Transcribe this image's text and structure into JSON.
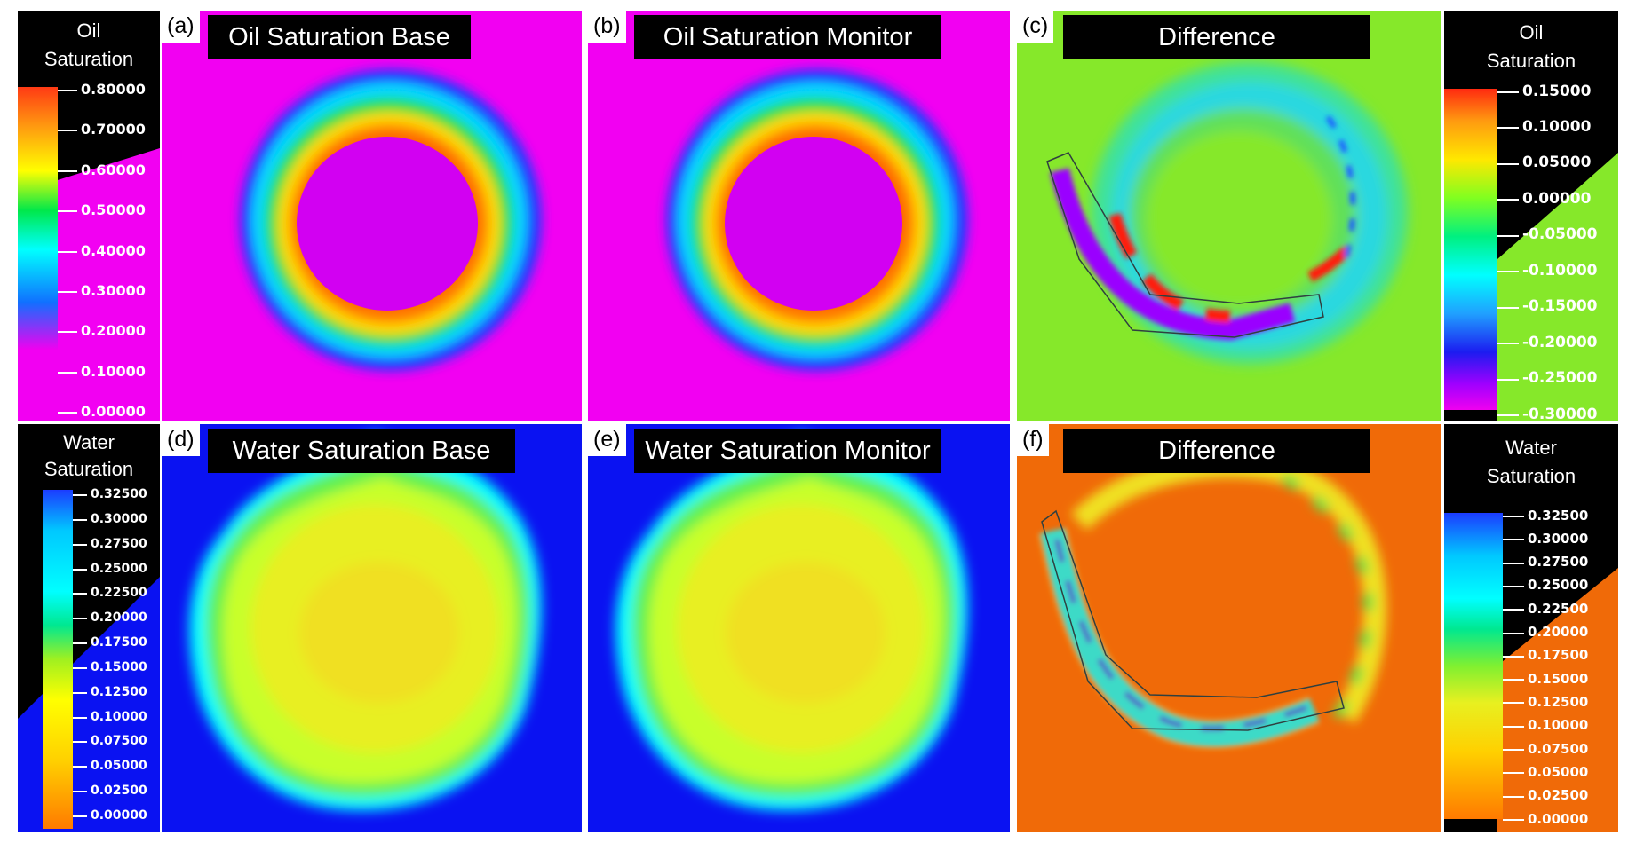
{
  "colorbars": {
    "oil_left": {
      "title_line1": "Oil",
      "title_line2": "Saturation",
      "ticks": [
        "0.80000",
        "0.70000",
        "0.60000",
        "0.50000",
        "0.40000",
        "0.30000",
        "0.20000",
        "0.10000",
        "0.00000"
      ]
    },
    "oil_right": {
      "title_line1": "Oil",
      "title_line2": "Saturation",
      "ticks": [
        "0.15000",
        "0.10000",
        "0.05000",
        "0.00000",
        "-0.05000",
        "-0.10000",
        "-0.15000",
        "-0.20000",
        "-0.25000",
        "-0.30000"
      ]
    },
    "water_left": {
      "title_line1": "Water",
      "title_line2": "Saturation",
      "ticks": [
        "0.32500",
        "0.30000",
        "0.27500",
        "0.25000",
        "0.22500",
        "0.20000",
        "0.17500",
        "0.15000",
        "0.12500",
        "0.10000",
        "0.07500",
        "0.05000",
        "0.02500",
        "0.00000"
      ]
    },
    "water_right": {
      "title_line1": "Water",
      "title_line2": "Saturation",
      "ticks": [
        "0.32500",
        "0.30000",
        "0.27500",
        "0.25000",
        "0.22500",
        "0.20000",
        "0.17500",
        "0.15000",
        "0.12500",
        "0.10000",
        "0.07500",
        "0.05000",
        "0.02500",
        "0.00000"
      ]
    }
  },
  "panels": {
    "a": {
      "letter": "(a)",
      "title": "Oil Saturation Base"
    },
    "b": {
      "letter": "(b)",
      "title": "Oil Saturation Monitor"
    },
    "c": {
      "letter": "(c)",
      "title": "Difference"
    },
    "d": {
      "letter": "(d)",
      "title": "Water Saturation Base"
    },
    "e": {
      "letter": "(e)",
      "title": "Water Saturation Monitor"
    },
    "f": {
      "letter": "(f)",
      "title": "Difference"
    }
  },
  "colors": {
    "magenta_background": "#f200f2",
    "blue_background": "#0a12f2",
    "green_background": "#86e82a",
    "orange_background": "#f06a08"
  }
}
